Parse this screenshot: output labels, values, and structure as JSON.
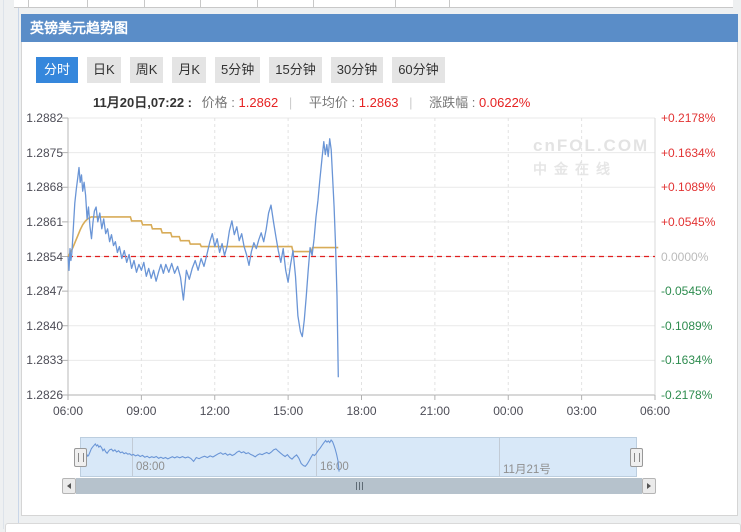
{
  "header": {
    "title": "英镑美元趋势图",
    "bg_color": "#5a8dc8"
  },
  "tabs": [
    {
      "label": "分时",
      "active": true
    },
    {
      "label": "日K",
      "active": false
    },
    {
      "label": "周K",
      "active": false
    },
    {
      "label": "月K",
      "active": false
    },
    {
      "label": "5分钟",
      "active": false
    },
    {
      "label": "15分钟",
      "active": false
    },
    {
      "label": "30分钟",
      "active": false
    },
    {
      "label": "60分钟",
      "active": false
    }
  ],
  "info": {
    "datetime": "11月20日,07:22 :",
    "price_label": "价格 :",
    "price": "1.2862",
    "avg_label": "平均价 :",
    "avg": "1.2863",
    "change_label": "涨跌幅 :",
    "change": "0.0622%",
    "separator": "|",
    "value_color": "#e62222"
  },
  "watermark": {
    "line1": "cnFOL.COM",
    "line2": "中金在线"
  },
  "chart_data": {
    "type": "line",
    "title": "英镑美元趋势图",
    "x_ticks": [
      "06:00",
      "09:00",
      "12:00",
      "15:00",
      "18:00",
      "21:00",
      "00:00",
      "03:00",
      "06:00"
    ],
    "y_left": [
      "1.2882",
      "1.2875",
      "1.2868",
      "1.2861",
      "1.2854",
      "1.2847",
      "1.2840",
      "1.2833",
      "1.2826"
    ],
    "y_right": [
      "+0.2178%",
      "+0.1634%",
      "+0.1089%",
      "+0.0545%",
      "0.0000%",
      "-0.0545%",
      "-0.1089%",
      "-0.1634%",
      "-0.2178%"
    ],
    "ylim": [
      1.2826,
      1.2882
    ],
    "xlim_hours": [
      6,
      30
    ],
    "baseline": 1.2854,
    "baseline_color": "#e01f1f",
    "grid": true,
    "colors": {
      "price": "#6a95d6",
      "average": "#d8ac58",
      "up": "#e23333",
      "down": "#2e8c4f",
      "zero": "#bbbbbb"
    },
    "series": [
      {
        "name": "价格",
        "color": "#6a95d6",
        "points": [
          [
            6.0,
            1.2854
          ],
          [
            6.04,
            1.28512
          ],
          [
            6.08,
            1.28556
          ],
          [
            6.12,
            1.28532
          ],
          [
            6.16,
            1.28548
          ],
          [
            6.22,
            1.286
          ],
          [
            6.28,
            1.28648
          ],
          [
            6.34,
            1.28676
          ],
          [
            6.4,
            1.287
          ],
          [
            6.45,
            1.2872
          ],
          [
            6.5,
            1.2869
          ],
          [
            6.55,
            1.28705
          ],
          [
            6.6,
            1.28672
          ],
          [
            6.66,
            1.2869
          ],
          [
            6.72,
            1.28664
          ],
          [
            6.78,
            1.28616
          ],
          [
            6.84,
            1.2864
          ],
          [
            6.9,
            1.286
          ],
          [
            6.96,
            1.28576
          ],
          [
            7.02,
            1.28608
          ],
          [
            7.08,
            1.28632
          ],
          [
            7.15,
            1.2864
          ],
          [
            7.22,
            1.2861
          ],
          [
            7.3,
            1.28628
          ],
          [
            7.38,
            1.28596
          ],
          [
            7.46,
            1.28616
          ],
          [
            7.54,
            1.28586
          ],
          [
            7.62,
            1.28596
          ],
          [
            7.7,
            1.2857
          ],
          [
            7.78,
            1.28584
          ],
          [
            7.86,
            1.28562
          ],
          [
            7.94,
            1.2857
          ],
          [
            8.02,
            1.28548
          ],
          [
            8.1,
            1.2856
          ],
          [
            8.2,
            1.28536
          ],
          [
            8.3,
            1.28552
          ],
          [
            8.4,
            1.28528
          ],
          [
            8.5,
            1.28544
          ],
          [
            8.6,
            1.28516
          ],
          [
            8.7,
            1.28532
          ],
          [
            8.8,
            1.28508
          ],
          [
            8.9,
            1.28524
          ],
          [
            9.0,
            1.28512
          ],
          [
            9.1,
            1.28528
          ],
          [
            9.2,
            1.285
          ],
          [
            9.3,
            1.28516
          ],
          [
            9.4,
            1.28496
          ],
          [
            9.5,
            1.28512
          ],
          [
            9.6,
            1.2849
          ],
          [
            9.7,
            1.28508
          ],
          [
            9.8,
            1.28524
          ],
          [
            9.9,
            1.28506
          ],
          [
            10.0,
            1.28524
          ],
          [
            10.12,
            1.28508
          ],
          [
            10.24,
            1.28526
          ],
          [
            10.36,
            1.28506
          ],
          [
            10.48,
            1.2852
          ],
          [
            10.6,
            1.28498
          ],
          [
            10.72,
            1.28452
          ],
          [
            10.84,
            1.28512
          ],
          [
            10.96,
            1.28494
          ],
          [
            11.08,
            1.28516
          ],
          [
            11.2,
            1.28532
          ],
          [
            11.32,
            1.28512
          ],
          [
            11.44,
            1.28536
          ],
          [
            11.56,
            1.2852
          ],
          [
            11.68,
            1.28544
          ],
          [
            11.8,
            1.2857
          ],
          [
            11.9,
            1.28586
          ],
          [
            12.0,
            1.2856
          ],
          [
            12.1,
            1.28576
          ],
          [
            12.2,
            1.28548
          ],
          [
            12.3,
            1.28566
          ],
          [
            12.4,
            1.28542
          ],
          [
            12.5,
            1.2856
          ],
          [
            12.6,
            1.28592
          ],
          [
            12.7,
            1.28612
          ],
          [
            12.8,
            1.28584
          ],
          [
            12.9,
            1.286
          ],
          [
            13.0,
            1.28572
          ],
          [
            13.1,
            1.28586
          ],
          [
            13.2,
            1.2856
          ],
          [
            13.3,
            1.28544
          ],
          [
            13.4,
            1.28522
          ],
          [
            13.5,
            1.2855
          ],
          [
            13.6,
            1.28568
          ],
          [
            13.7,
            1.28556
          ],
          [
            13.8,
            1.28574
          ],
          [
            13.9,
            1.28588
          ],
          [
            14.0,
            1.2857
          ],
          [
            14.1,
            1.28594
          ],
          [
            14.2,
            1.28628
          ],
          [
            14.3,
            1.28644
          ],
          [
            14.4,
            1.2861
          ],
          [
            14.5,
            1.2858
          ],
          [
            14.6,
            1.28552
          ],
          [
            14.7,
            1.28528
          ],
          [
            14.8,
            1.28556
          ],
          [
            14.9,
            1.28512
          ],
          [
            15.0,
            1.28488
          ],
          [
            15.1,
            1.28524
          ],
          [
            15.2,
            1.28552
          ],
          [
            15.3,
            1.285
          ],
          [
            15.4,
            1.2842
          ],
          [
            15.5,
            1.28388
          ],
          [
            15.58,
            1.28378
          ],
          [
            15.66,
            1.28412
          ],
          [
            15.74,
            1.28458
          ],
          [
            15.82,
            1.28512
          ],
          [
            15.9,
            1.28558
          ],
          [
            15.98,
            1.28542
          ],
          [
            16.06,
            1.28576
          ],
          [
            16.14,
            1.2862
          ],
          [
            16.22,
            1.28654
          ],
          [
            16.3,
            1.28696
          ],
          [
            16.38,
            1.28736
          ],
          [
            16.46,
            1.28772
          ],
          [
            16.52,
            1.28746
          ],
          [
            16.58,
            1.28766
          ],
          [
            16.64,
            1.28742
          ],
          [
            16.7,
            1.28778
          ],
          [
            16.76,
            1.28756
          ],
          [
            16.82,
            1.287
          ],
          [
            16.88,
            1.2864
          ],
          [
            16.94,
            1.2856
          ],
          [
            17.0,
            1.2846
          ],
          [
            17.05,
            1.28296
          ]
        ]
      },
      {
        "name": "平均价",
        "color": "#d8ac58",
        "points": [
          [
            6.0,
            1.2854
          ],
          [
            6.1,
            1.28548
          ],
          [
            6.2,
            1.28558
          ],
          [
            6.3,
            1.2857
          ],
          [
            6.4,
            1.28582
          ],
          [
            6.5,
            1.28594
          ],
          [
            6.6,
            1.28604
          ],
          [
            6.7,
            1.28611
          ],
          [
            6.8,
            1.28616
          ],
          [
            6.95,
            1.2862
          ],
          [
            8.55,
            1.2862
          ],
          [
            8.6,
            1.28612
          ],
          [
            9.0,
            1.28612
          ],
          [
            9.05,
            1.28604
          ],
          [
            9.4,
            1.28604
          ],
          [
            9.45,
            1.28596
          ],
          [
            9.8,
            1.28596
          ],
          [
            9.85,
            1.28588
          ],
          [
            10.2,
            1.28588
          ],
          [
            10.25,
            1.2858
          ],
          [
            10.55,
            1.2858
          ],
          [
            10.6,
            1.28572
          ],
          [
            10.95,
            1.28572
          ],
          [
            11.0,
            1.28565
          ],
          [
            11.4,
            1.28565
          ],
          [
            11.45,
            1.2856
          ],
          [
            15.15,
            1.2856
          ],
          [
            15.2,
            1.2855
          ],
          [
            15.95,
            1.2855
          ],
          [
            16.0,
            1.28558
          ],
          [
            17.05,
            1.28558
          ]
        ]
      }
    ]
  },
  "navigator": {
    "labels": [
      "08:00",
      "16:00",
      "11月21号"
    ],
    "range_color": "#d8e8f8"
  },
  "scrollbar": {
    "grip": "|||"
  }
}
